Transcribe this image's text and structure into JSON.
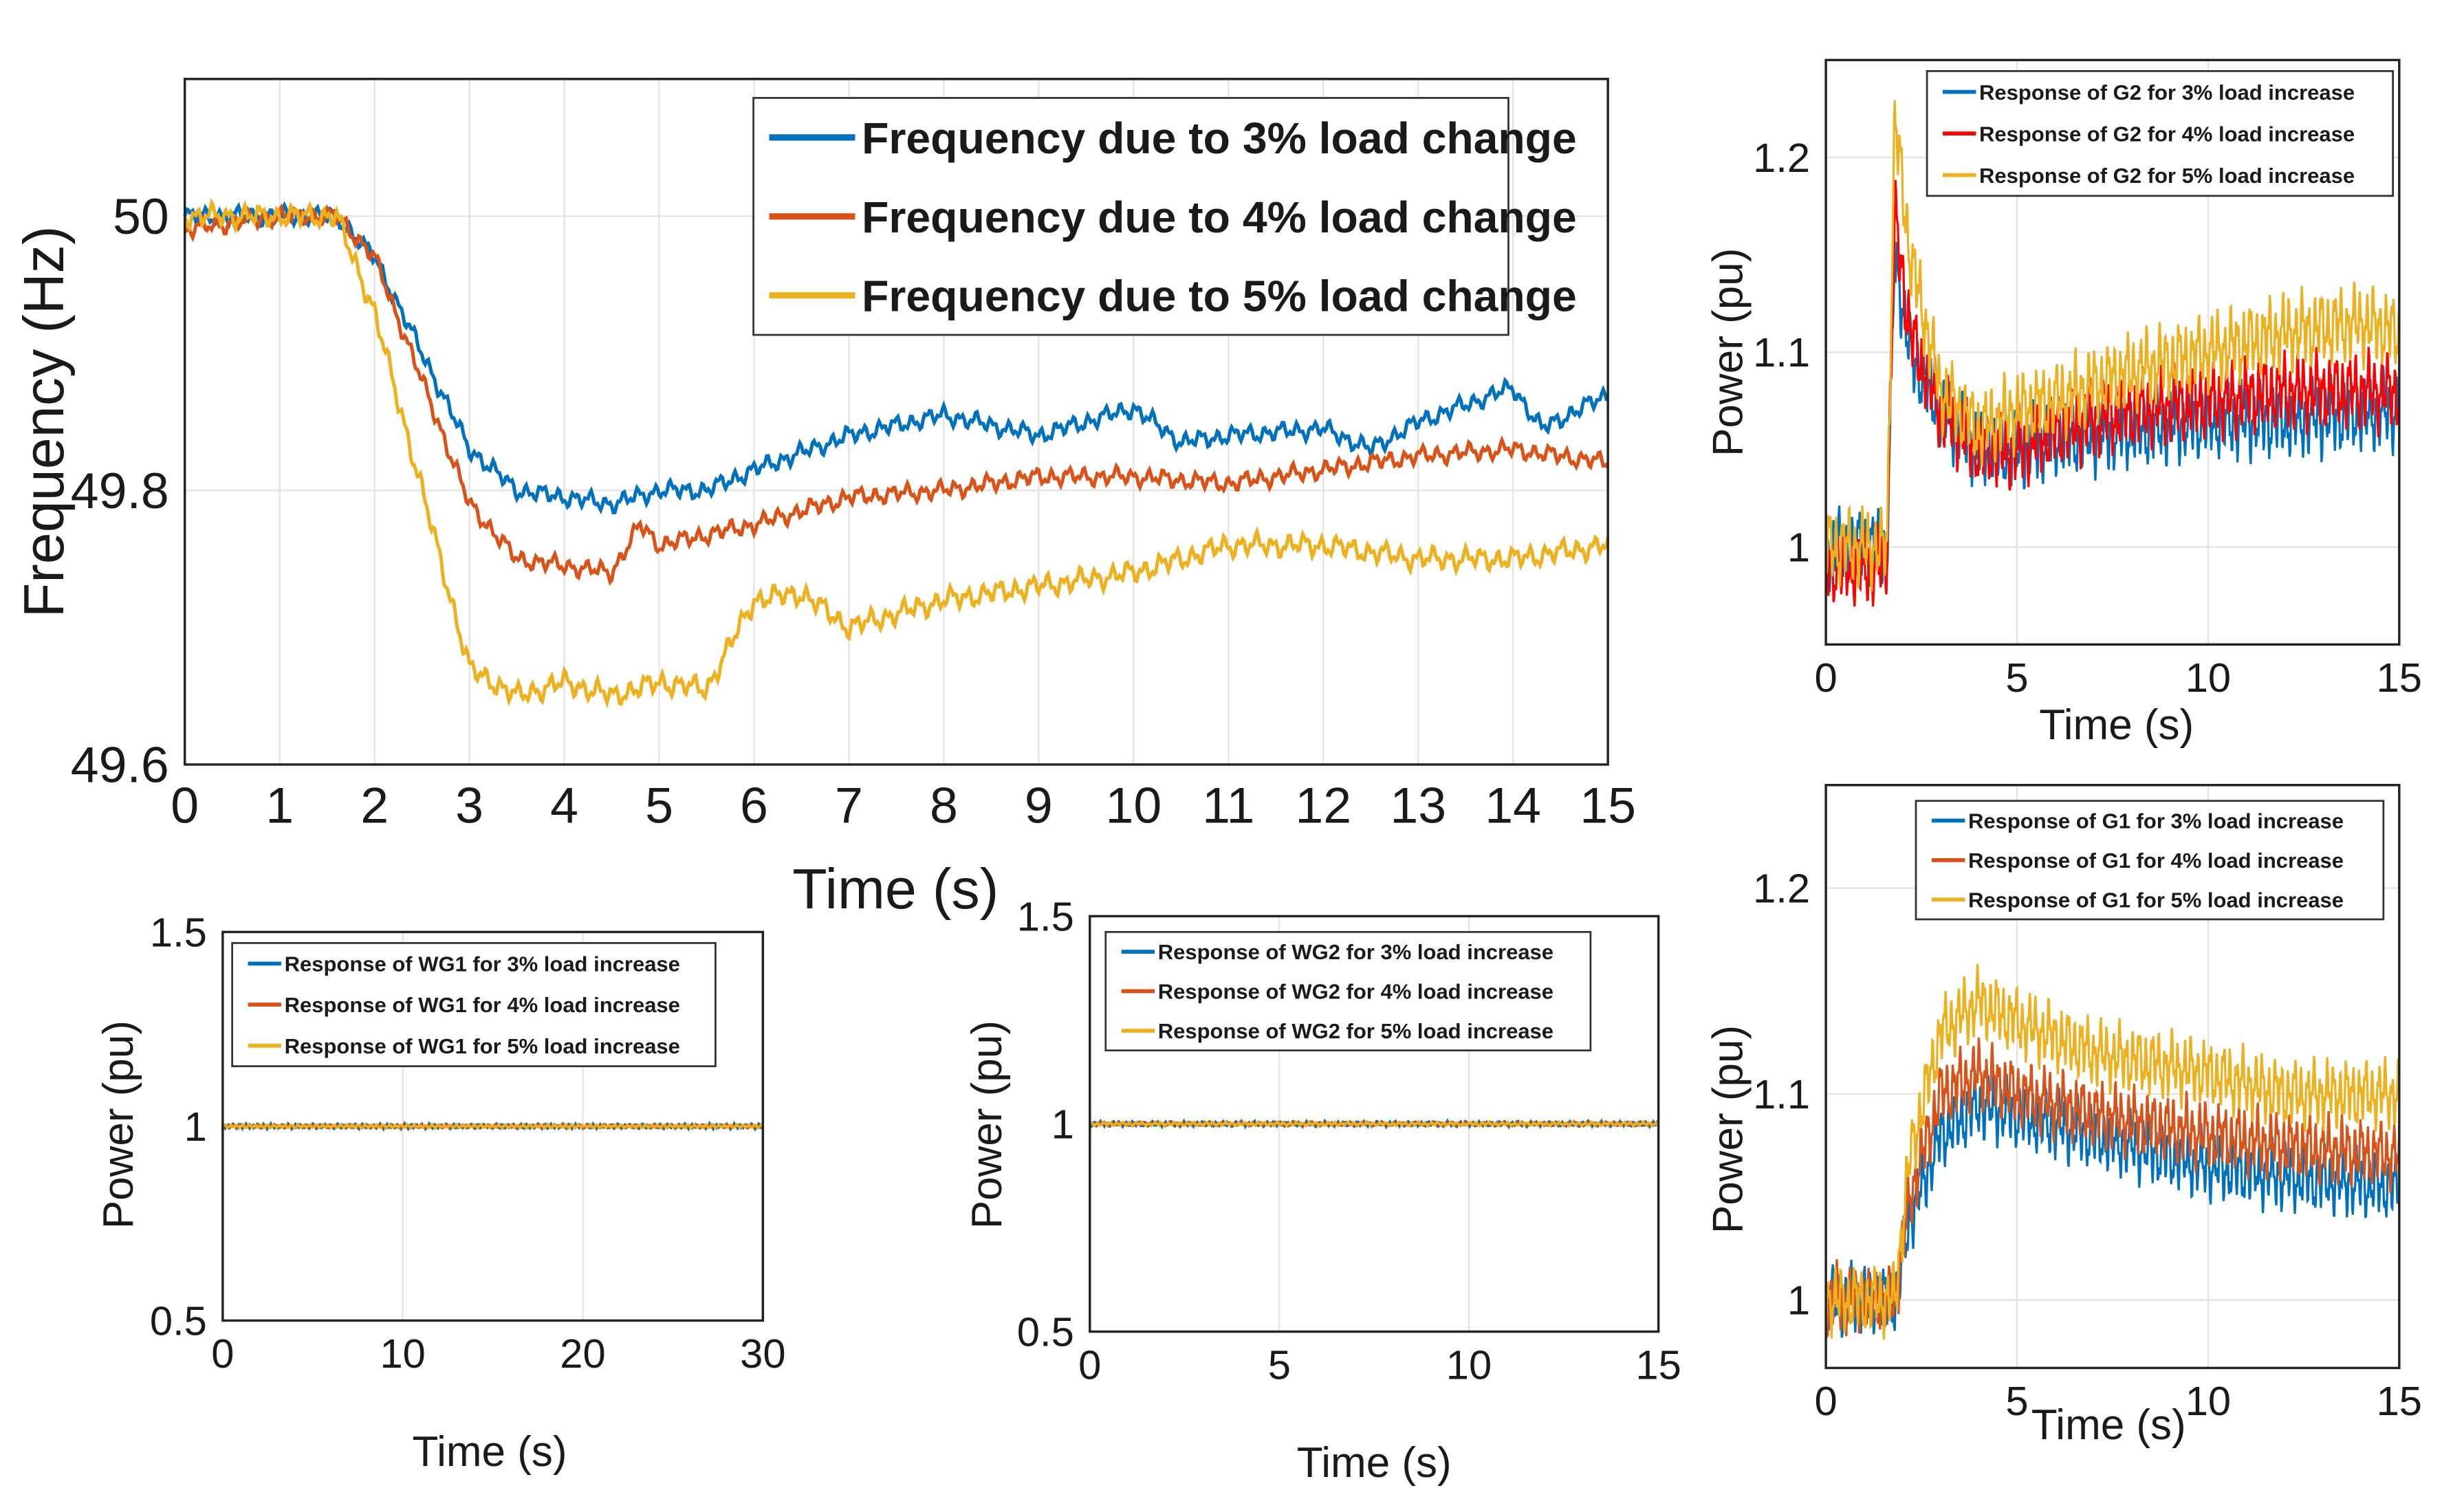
{
  "chart_data": [
    {
      "id": "main",
      "type": "line",
      "title": "",
      "xlabel": "Time (s)",
      "ylabel": "Frequency (Hz)",
      "xlim": [
        0,
        15
      ],
      "ylim": [
        49.6,
        50.1
      ],
      "xticks": [
        0,
        1,
        2,
        3,
        4,
        5,
        6,
        7,
        8,
        9,
        10,
        11,
        12,
        13,
        14,
        15
      ],
      "yticks": [
        49.6,
        49.8,
        50
      ],
      "ytick_labels": [
        "49.6",
        "49.8",
        "50"
      ],
      "grid": true,
      "legend_position": "top-right",
      "series": [
        {
          "name": "Frequency due to 3% load change",
          "color": "#0072BD",
          "ripple": 0.004,
          "x": [
            0,
            1,
            1.6,
            2,
            2.5,
            3,
            3.5,
            4,
            4.5,
            5,
            5.5,
            6,
            7,
            8,
            9,
            10,
            10.5,
            11,
            12,
            12.5,
            13,
            14,
            14.3,
            15
          ],
          "y": [
            50.0,
            50.0,
            50.0,
            49.97,
            49.9,
            49.83,
            49.8,
            49.795,
            49.79,
            49.8,
            49.8,
            49.815,
            49.84,
            49.855,
            49.84,
            49.86,
            49.835,
            49.84,
            49.845,
            49.83,
            49.85,
            49.875,
            49.845,
            49.87
          ]
        },
        {
          "name": "Frequency due to 4% load change",
          "color": "#D95319",
          "ripple": 0.004,
          "x": [
            0,
            1,
            1.6,
            2,
            2.5,
            3,
            3.5,
            4,
            4.5,
            4.8,
            5,
            6,
            7,
            8,
            9,
            10,
            11,
            12,
            13,
            14,
            15
          ],
          "y": [
            49.99,
            50.0,
            50.0,
            49.97,
            49.88,
            49.79,
            49.75,
            49.745,
            49.74,
            49.775,
            49.76,
            49.775,
            49.795,
            49.8,
            49.81,
            49.81,
            49.805,
            49.815,
            49.825,
            49.83,
            49.82
          ]
        },
        {
          "name": "Frequency due to 5% load change",
          "color": "#EDB120",
          "ripple": 0.005,
          "x": [
            0,
            1,
            1.6,
            2,
            2.5,
            3,
            3.5,
            4,
            4.5,
            5,
            5.5,
            6,
            6.5,
            7,
            8,
            9,
            10,
            11,
            12,
            13,
            14,
            15
          ],
          "y": [
            50.0,
            50.0,
            50.0,
            49.93,
            49.8,
            49.67,
            49.65,
            49.66,
            49.65,
            49.66,
            49.655,
            49.72,
            49.725,
            49.7,
            49.72,
            49.73,
            49.74,
            49.76,
            49.76,
            49.75,
            49.75,
            49.76
          ]
        }
      ]
    },
    {
      "id": "g2",
      "type": "line",
      "xlabel": "Time (s)",
      "ylabel": "Power (pu)",
      "xlim": [
        0,
        15
      ],
      "ylim": [
        0.95,
        1.25
      ],
      "xticks": [
        0,
        5,
        10,
        15
      ],
      "yticks": [
        1,
        1.1,
        1.2
      ],
      "ytick_labels": [
        "1",
        "1.1",
        "1.2"
      ],
      "grid": true,
      "legend_position": "top-right",
      "series": [
        {
          "name": "Response of G2 for 3% load increase",
          "color": "#0072BD",
          "ripple": 0.012,
          "x": [
            0,
            1.5,
            1.6,
            1.8,
            2.2,
            3,
            4,
            5,
            6,
            8,
            10,
            12,
            15
          ],
          "y": [
            1.0,
            1.0,
            1.0,
            1.15,
            1.1,
            1.07,
            1.05,
            1.05,
            1.055,
            1.06,
            1.065,
            1.065,
            1.07
          ]
        },
        {
          "name": "Response of G2 for 4% load increase",
          "color": "#FF0000",
          "ripple": 0.012,
          "x": [
            0,
            1.5,
            1.6,
            1.8,
            2.2,
            3,
            4,
            5,
            6,
            8,
            10,
            12,
            15
          ],
          "y": [
            0.99,
            0.99,
            1.0,
            1.17,
            1.11,
            1.07,
            1.05,
            1.05,
            1.06,
            1.07,
            1.075,
            1.08,
            1.08
          ]
        },
        {
          "name": "Response of G2 for 5% load increase",
          "color": "#EDB120",
          "ripple": 0.012,
          "x": [
            0,
            1.5,
            1.6,
            1.8,
            2.2,
            3,
            4,
            5,
            6,
            8,
            10,
            12,
            14,
            15
          ],
          "y": [
            1.0,
            1.0,
            1.0,
            1.22,
            1.15,
            1.08,
            1.06,
            1.07,
            1.075,
            1.09,
            1.1,
            1.11,
            1.115,
            1.11
          ]
        }
      ]
    },
    {
      "id": "g1",
      "type": "line",
      "xlabel": "Time (s)",
      "ylabel": "Power (pu)",
      "xlim": [
        0,
        15
      ],
      "ylim": [
        0.967,
        1.25
      ],
      "xticks": [
        0,
        5,
        10,
        15
      ],
      "yticks": [
        1,
        1.1,
        1.2
      ],
      "ytick_labels": [
        "1",
        "1.1",
        "1.2"
      ],
      "grid": true,
      "legend_position": "top-right",
      "series": [
        {
          "name": "Response of G1 for 3% load increase",
          "color": "#0072BD",
          "ripple": 0.01,
          "x": [
            0,
            1.8,
            2.2,
            3,
            4,
            5,
            7,
            10,
            12,
            15
          ],
          "y": [
            1.0,
            1.0,
            1.04,
            1.08,
            1.095,
            1.09,
            1.08,
            1.065,
            1.06,
            1.055
          ]
        },
        {
          "name": "Response of G1 for 4% load increase",
          "color": "#D95319",
          "ripple": 0.01,
          "x": [
            0,
            1.8,
            2.2,
            3,
            4,
            5,
            7,
            10,
            12,
            15
          ],
          "y": [
            1.0,
            1.0,
            1.05,
            1.1,
            1.11,
            1.1,
            1.09,
            1.08,
            1.075,
            1.07
          ]
        },
        {
          "name": "Response of G1 for 5% load increase",
          "color": "#EDB120",
          "ripple": 0.01,
          "x": [
            0,
            1.8,
            2.2,
            3,
            4,
            5,
            7,
            10,
            12,
            15
          ],
          "y": [
            1.0,
            1.0,
            1.07,
            1.13,
            1.145,
            1.135,
            1.12,
            1.11,
            1.1,
            1.1
          ]
        }
      ]
    },
    {
      "id": "wg1",
      "type": "line",
      "xlabel": "Time (s)",
      "ylabel": "Power (pu)",
      "xlim": [
        0,
        30
      ],
      "ylim": [
        0.5,
        1.5
      ],
      "xticks": [
        0,
        10,
        20,
        30
      ],
      "yticks": [
        0.5,
        1,
        1.5
      ],
      "ytick_labels": [
        "0.5",
        "1",
        "1.5"
      ],
      "grid": true,
      "legend_position": "top",
      "series": [
        {
          "name": "Response of WG1 for 3% load increase",
          "color": "#0072BD",
          "ripple": 0.004,
          "x": [
            0,
            30
          ],
          "y": [
            1.0,
            1.0
          ]
        },
        {
          "name": "Response of WG1 for 4% load increase",
          "color": "#D95319",
          "ripple": 0.003,
          "x": [
            0,
            30
          ],
          "y": [
            1.0,
            1.0
          ]
        },
        {
          "name": "Response of WG1 for 5% load increase",
          "color": "#EDB120",
          "ripple": 0.003,
          "x": [
            0,
            30
          ],
          "y": [
            1.0,
            1.0
          ]
        }
      ]
    },
    {
      "id": "wg2",
      "type": "line",
      "xlabel": "Time (s)",
      "ylabel": "Power (pu)",
      "xlim": [
        0,
        15
      ],
      "ylim": [
        0.5,
        1.5
      ],
      "xticks": [
        0,
        5,
        10,
        15
      ],
      "yticks": [
        0.5,
        1,
        1.5
      ],
      "ytick_labels": [
        "0.5",
        "1",
        "1.5"
      ],
      "grid": true,
      "legend_position": "top",
      "series": [
        {
          "name": "Response of WG2 for 3% load increase",
          "color": "#0072BD",
          "ripple": 0.004,
          "x": [
            0,
            15
          ],
          "y": [
            1.0,
            1.0
          ]
        },
        {
          "name": "Response of WG2 for 4% load increase",
          "color": "#D95319",
          "ripple": 0.003,
          "x": [
            0,
            15
          ],
          "y": [
            1.0,
            1.0
          ]
        },
        {
          "name": "Response of WG2 for 5% load increase",
          "color": "#EDB120",
          "ripple": 0.003,
          "x": [
            0,
            15
          ],
          "y": [
            1.0,
            1.0
          ]
        }
      ]
    }
  ]
}
